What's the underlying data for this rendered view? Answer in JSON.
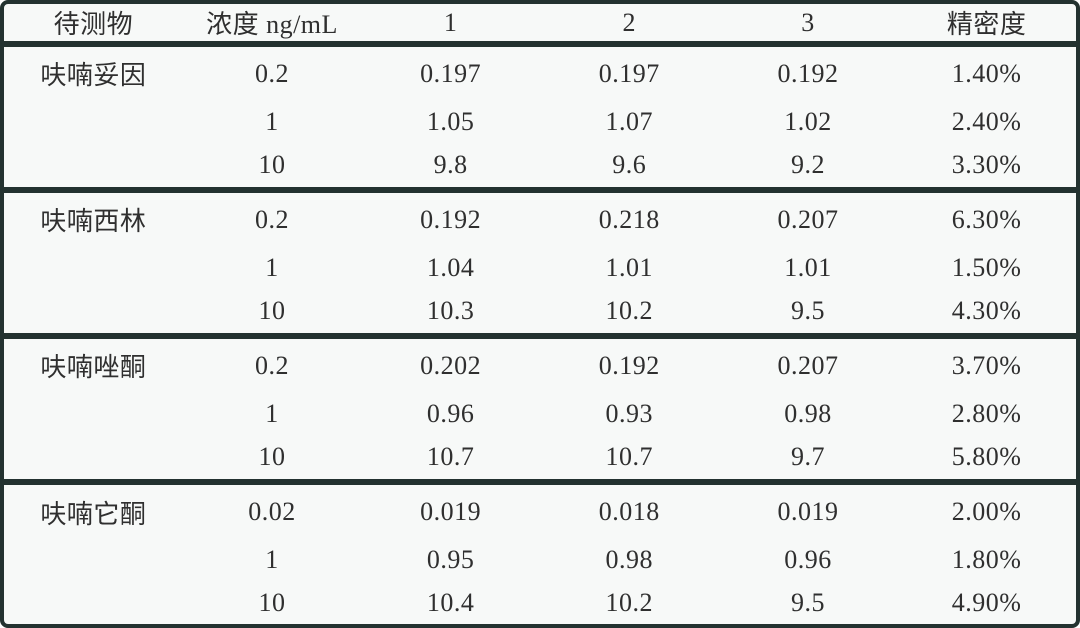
{
  "colors": {
    "border": "#233230",
    "text": "#2f2f2f",
    "background": "#f7f9f8"
  },
  "table": {
    "headers": [
      "待测物",
      "浓度 ng/mL",
      "1",
      "2",
      "3",
      "精密度"
    ],
    "groups": [
      {
        "analyte": "呋喃妥因",
        "rows": [
          {
            "concentration": "0.2",
            "rep1": "0.197",
            "rep2": "0.197",
            "rep3": "0.192",
            "precision": "1.40%"
          },
          {
            "concentration": "1",
            "rep1": "1.05",
            "rep2": "1.07",
            "rep3": "1.02",
            "precision": "2.40%"
          },
          {
            "concentration": "10",
            "rep1": "9.8",
            "rep2": "9.6",
            "rep3": "9.2",
            "precision": "3.30%"
          }
        ]
      },
      {
        "analyte": "呋喃西林",
        "rows": [
          {
            "concentration": "0.2",
            "rep1": "0.192",
            "rep2": "0.218",
            "rep3": "0.207",
            "precision": "6.30%"
          },
          {
            "concentration": "1",
            "rep1": "1.04",
            "rep2": "1.01",
            "rep3": "1.01",
            "precision": "1.50%"
          },
          {
            "concentration": "10",
            "rep1": "10.3",
            "rep2": "10.2",
            "rep3": "9.5",
            "precision": "4.30%"
          }
        ]
      },
      {
        "analyte": "呋喃唑酮",
        "rows": [
          {
            "concentration": "0.2",
            "rep1": "0.202",
            "rep2": "0.192",
            "rep3": "0.207",
            "precision": "3.70%"
          },
          {
            "concentration": "1",
            "rep1": "0.96",
            "rep2": "0.93",
            "rep3": "0.98",
            "precision": "2.80%"
          },
          {
            "concentration": "10",
            "rep1": "10.7",
            "rep2": "10.7",
            "rep3": "9.7",
            "precision": "5.80%"
          }
        ]
      },
      {
        "analyte": "呋喃它酮",
        "rows": [
          {
            "concentration": "0.02",
            "rep1": "0.019",
            "rep2": "0.018",
            "rep3": "0.019",
            "precision": "2.00%"
          },
          {
            "concentration": "1",
            "rep1": "0.95",
            "rep2": "0.98",
            "rep3": "0.96",
            "precision": "1.80%"
          },
          {
            "concentration": "10",
            "rep1": "10.4",
            "rep2": "10.2",
            "rep3": "9.5",
            "precision": "4.90%"
          }
        ]
      }
    ]
  },
  "chart_data": {
    "type": "table",
    "columns": [
      "待测物",
      "浓度 ng/mL",
      "1",
      "2",
      "3",
      "精密度"
    ],
    "rows": [
      [
        "呋喃妥因",
        "0.2",
        "0.197",
        "0.197",
        "0.192",
        "1.40%"
      ],
      [
        "",
        "1",
        "1.05",
        "1.07",
        "1.02",
        "2.40%"
      ],
      [
        "",
        "10",
        "9.8",
        "9.6",
        "9.2",
        "3.30%"
      ],
      [
        "呋喃西林",
        "0.2",
        "0.192",
        "0.218",
        "0.207",
        "6.30%"
      ],
      [
        "",
        "1",
        "1.04",
        "1.01",
        "1.01",
        "1.50%"
      ],
      [
        "",
        "10",
        "10.3",
        "10.2",
        "9.5",
        "4.30%"
      ],
      [
        "呋喃唑酮",
        "0.2",
        "0.202",
        "0.192",
        "0.207",
        "3.70%"
      ],
      [
        "",
        "1",
        "0.96",
        "0.93",
        "0.98",
        "2.80%"
      ],
      [
        "",
        "10",
        "10.7",
        "10.7",
        "9.7",
        "5.80%"
      ],
      [
        "呋喃它酮",
        "0.02",
        "0.019",
        "0.018",
        "0.019",
        "2.00%"
      ],
      [
        "",
        "1",
        "0.95",
        "0.98",
        "0.96",
        "1.80%"
      ],
      [
        "",
        "10",
        "10.4",
        "10.2",
        "9.5",
        "4.90%"
      ]
    ]
  }
}
